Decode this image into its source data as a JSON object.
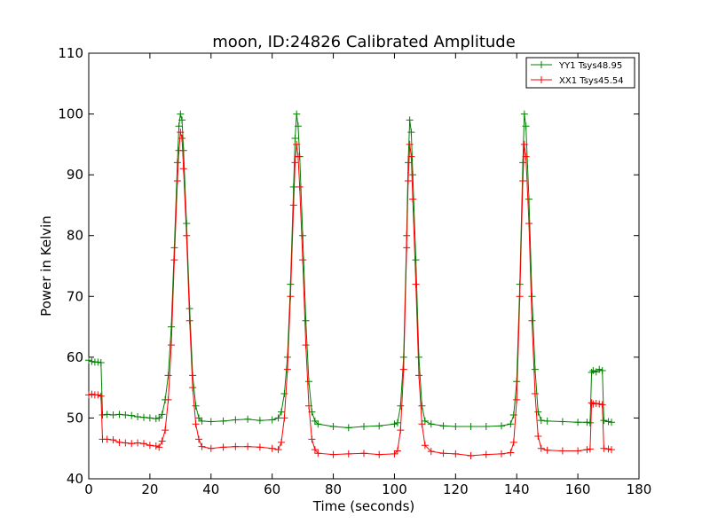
{
  "chart_data": {
    "type": "line",
    "title": "moon, ID:24826 Calibrated Amplitude",
    "xlabel": "Time (seconds)",
    "ylabel": "Power in Kelvin",
    "xlim": [
      0,
      180
    ],
    "ylim": [
      40,
      110
    ],
    "xticks": [
      0,
      20,
      40,
      60,
      80,
      100,
      120,
      140,
      160,
      180
    ],
    "yticks": [
      40,
      50,
      60,
      70,
      80,
      90,
      100,
      110
    ],
    "grid": false,
    "legend_position": "top-right",
    "marker": "+",
    "series": [
      {
        "name": "YY1 Tsys48.95",
        "color": "#008000",
        "points": [
          [
            0,
            59.5
          ],
          [
            1,
            59.3
          ],
          [
            2,
            59.2
          ],
          [
            3,
            59.2
          ],
          [
            4,
            59.1
          ],
          [
            4.5,
            50.5
          ],
          [
            6,
            50.6
          ],
          [
            8,
            50.5
          ],
          [
            10,
            50.6
          ],
          [
            12,
            50.5
          ],
          [
            14,
            50.4
          ],
          [
            16,
            50.2
          ],
          [
            18,
            50.1
          ],
          [
            20,
            50.0
          ],
          [
            22,
            49.9
          ],
          [
            23,
            50.0
          ],
          [
            24,
            50.6
          ],
          [
            25,
            53
          ],
          [
            26,
            57
          ],
          [
            27,
            65
          ],
          [
            28,
            78
          ],
          [
            29,
            92
          ],
          [
            29.5,
            98
          ],
          [
            30,
            100
          ],
          [
            30.5,
            99
          ],
          [
            31,
            94
          ],
          [
            32,
            82
          ],
          [
            33,
            68
          ],
          [
            34,
            57
          ],
          [
            35,
            52
          ],
          [
            36,
            50
          ],
          [
            37,
            49.5
          ],
          [
            40,
            49.4
          ],
          [
            44,
            49.5
          ],
          [
            48,
            49.7
          ],
          [
            52,
            49.8
          ],
          [
            56,
            49.6
          ],
          [
            60,
            49.7
          ],
          [
            62,
            50.0
          ],
          [
            63,
            51
          ],
          [
            64,
            54
          ],
          [
            65,
            60
          ],
          [
            66,
            72
          ],
          [
            67,
            88
          ],
          [
            67.5,
            96
          ],
          [
            68,
            100
          ],
          [
            68.5,
            98
          ],
          [
            69,
            93
          ],
          [
            70,
            80
          ],
          [
            71,
            66
          ],
          [
            72,
            56
          ],
          [
            73,
            51
          ],
          [
            74,
            49.5
          ],
          [
            75,
            49.0
          ],
          [
            80,
            48.6
          ],
          [
            85,
            48.4
          ],
          [
            90,
            48.6
          ],
          [
            95,
            48.7
          ],
          [
            100,
            49.0
          ],
          [
            101,
            49.2
          ],
          [
            102,
            52
          ],
          [
            103,
            60
          ],
          [
            104,
            80
          ],
          [
            104.5,
            92
          ],
          [
            105,
            99
          ],
          [
            105.5,
            97
          ],
          [
            106,
            90
          ],
          [
            107,
            76
          ],
          [
            108,
            60
          ],
          [
            109,
            52
          ],
          [
            110,
            49.5
          ],
          [
            112,
            49.0
          ],
          [
            116,
            48.7
          ],
          [
            120,
            48.6
          ],
          [
            125,
            48.6
          ],
          [
            130,
            48.6
          ],
          [
            135,
            48.7
          ],
          [
            138,
            49.0
          ],
          [
            139,
            50.5
          ],
          [
            140,
            56
          ],
          [
            141,
            72
          ],
          [
            142,
            92
          ],
          [
            142.5,
            100
          ],
          [
            143,
            98
          ],
          [
            144,
            86
          ],
          [
            145,
            70
          ],
          [
            146,
            58
          ],
          [
            147,
            51
          ],
          [
            148,
            49.6
          ],
          [
            150,
            49.5
          ],
          [
            155,
            49.4
          ],
          [
            160,
            49.3
          ],
          [
            163,
            49.3
          ],
          [
            164,
            49.2
          ],
          [
            164.5,
            57.5
          ],
          [
            165,
            57.8
          ],
          [
            166,
            57.6
          ],
          [
            167,
            58.0
          ],
          [
            168,
            57.8
          ],
          [
            168.5,
            49.6
          ],
          [
            170,
            49.4
          ],
          [
            171,
            49.3
          ]
        ]
      },
      {
        "name": "XX1 Tsys45.54",
        "color": "#ff0000",
        "points": [
          [
            0,
            53.8
          ],
          [
            1,
            53.9
          ],
          [
            2,
            53.8
          ],
          [
            3,
            53.8
          ],
          [
            4,
            53.6
          ],
          [
            4.5,
            46.5
          ],
          [
            6,
            46.5
          ],
          [
            8,
            46.4
          ],
          [
            10,
            46.0
          ],
          [
            12,
            45.9
          ],
          [
            14,
            45.8
          ],
          [
            16,
            45.9
          ],
          [
            18,
            45.8
          ],
          [
            20,
            45.5
          ],
          [
            22,
            45.4
          ],
          [
            23,
            45.2
          ],
          [
            24,
            46.2
          ],
          [
            25,
            48
          ],
          [
            26,
            53
          ],
          [
            27,
            62
          ],
          [
            28,
            76
          ],
          [
            29,
            89
          ],
          [
            29.5,
            94
          ],
          [
            30,
            97
          ],
          [
            30.5,
            96
          ],
          [
            31,
            91
          ],
          [
            32,
            80
          ],
          [
            33,
            66
          ],
          [
            34,
            55
          ],
          [
            35,
            49
          ],
          [
            36,
            46.5
          ],
          [
            37,
            45.3
          ],
          [
            40,
            45.0
          ],
          [
            44,
            45.2
          ],
          [
            48,
            45.3
          ],
          [
            52,
            45.3
          ],
          [
            56,
            45.2
          ],
          [
            60,
            45.0
          ],
          [
            62,
            44.8
          ],
          [
            63,
            46
          ],
          [
            64,
            50
          ],
          [
            65,
            58
          ],
          [
            66,
            70
          ],
          [
            67,
            85
          ],
          [
            67.5,
            92
          ],
          [
            68,
            95
          ],
          [
            68.5,
            93
          ],
          [
            69,
            88
          ],
          [
            70,
            76
          ],
          [
            71,
            62
          ],
          [
            72,
            52
          ],
          [
            73,
            46.5
          ],
          [
            74,
            44.8
          ],
          [
            75,
            44.2
          ],
          [
            80,
            44.0
          ],
          [
            85,
            44.1
          ],
          [
            90,
            44.2
          ],
          [
            95,
            44.0
          ],
          [
            100,
            44.1
          ],
          [
            101,
            44.6
          ],
          [
            102,
            48
          ],
          [
            103,
            58
          ],
          [
            104,
            78
          ],
          [
            104.5,
            89
          ],
          [
            105,
            95
          ],
          [
            105.5,
            93
          ],
          [
            106,
            86
          ],
          [
            107,
            72
          ],
          [
            108,
            57
          ],
          [
            109,
            49
          ],
          [
            110,
            45.5
          ],
          [
            112,
            44.5
          ],
          [
            116,
            44.2
          ],
          [
            120,
            44.1
          ],
          [
            125,
            43.8
          ],
          [
            130,
            44.0
          ],
          [
            135,
            44.1
          ],
          [
            138,
            44.3
          ],
          [
            139,
            46
          ],
          [
            140,
            53
          ],
          [
            141,
            70
          ],
          [
            142,
            89
          ],
          [
            142.5,
            95
          ],
          [
            143,
            93
          ],
          [
            144,
            82
          ],
          [
            145,
            66
          ],
          [
            146,
            54
          ],
          [
            147,
            47
          ],
          [
            148,
            45
          ],
          [
            150,
            44.7
          ],
          [
            155,
            44.6
          ],
          [
            160,
            44.6
          ],
          [
            163,
            44.8
          ],
          [
            164,
            44.9
          ],
          [
            164.5,
            52.5
          ],
          [
            165,
            52.3
          ],
          [
            166,
            52.4
          ],
          [
            167,
            52.3
          ],
          [
            168,
            52.2
          ],
          [
            168.5,
            45
          ],
          [
            170,
            44.9
          ],
          [
            171,
            44.8
          ]
        ]
      }
    ]
  }
}
